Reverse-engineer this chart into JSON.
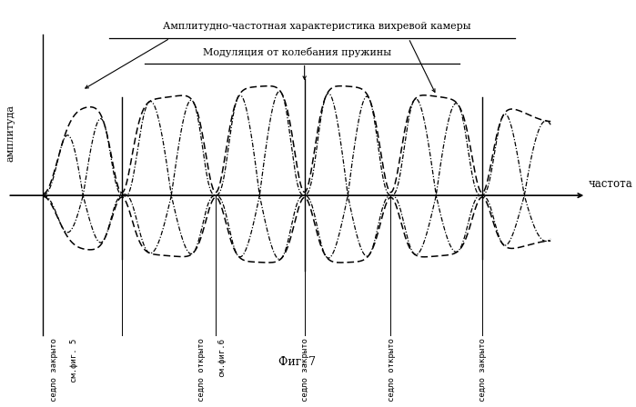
{
  "title1": "Амплитудно-частотная характеристика вихревой камеры",
  "title2": "Модуляция от колебания пружины",
  "xlabel": "частота",
  "ylabel": "амплитуда",
  "fig_label": "Фиг. 7",
  "vlines_x": [
    0.155,
    0.34,
    0.515,
    0.685,
    0.865
  ],
  "vline_labels": [
    "седло закрыто\nсм.фиг. 5",
    "седло открыто\nсм.фиг.6",
    "седло закрыто",
    "седло открыто",
    "седло закрыто"
  ],
  "background_color": "#ffffff"
}
